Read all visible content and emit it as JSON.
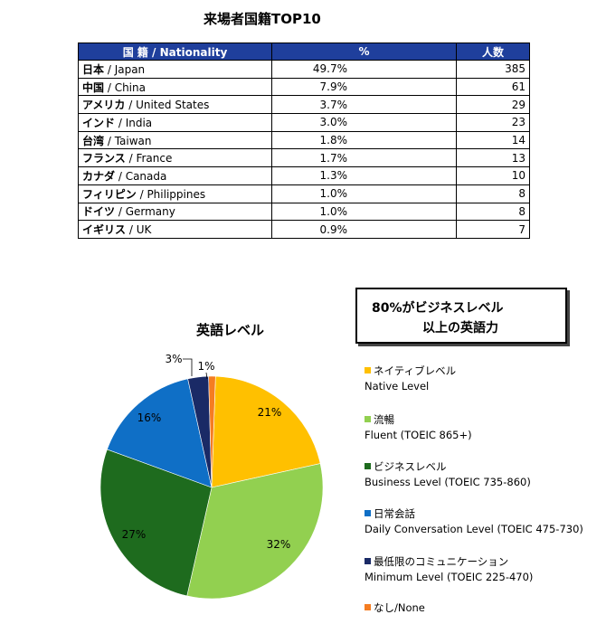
{
  "table": {
    "title": "来場者国籍TOP10",
    "headers": [
      "国 籍 / Nationality",
      "%",
      "人数"
    ],
    "rows": [
      {
        "jp": "日本",
        "en": " / Japan",
        "pct": "49.7%",
        "count": "385"
      },
      {
        "jp": "中国",
        "en": " / China",
        "pct": "7.9%",
        "count": "61"
      },
      {
        "jp": "アメリカ",
        "en": " / United States",
        "pct": "3.7%",
        "count": "29"
      },
      {
        "jp": "インド",
        "en": " / India",
        "pct": "3.0%",
        "count": "23"
      },
      {
        "jp": "台湾",
        "en": " / Taiwan",
        "pct": "1.8%",
        "count": "14"
      },
      {
        "jp": "フランス",
        "en": " / France",
        "pct": "1.7%",
        "count": "13"
      },
      {
        "jp": "カナダ",
        "en": " / Canada",
        "pct": "1.3%",
        "count": "10"
      },
      {
        "jp": "フィリピン",
        "en": " / Philippines",
        "pct": "1.0%",
        "count": "8"
      },
      {
        "jp": "ドイツ",
        "en": " / Germany",
        "pct": "1.0%",
        "count": "8"
      },
      {
        "jp": "イギリス",
        "en": " / UK",
        "pct": "0.9%",
        "count": "7"
      }
    ]
  },
  "callout": {
    "line1": "80%がビジネスレベル",
    "line2": "以上の英語力"
  },
  "chart_data": {
    "type": "pie",
    "title": "英語レベル",
    "labels": [
      "ネイティブレベル Native Level",
      "流暢 Fluent (TOEIC 865+)",
      "ビジネスレベル Business Level (TOEIC 735-860)",
      "日常会話 Daily Conversation Level (TOEIC 475-730)",
      "最低限のコミュニケーション Minimum Level (TOEIC 225-470)",
      "なし/None"
    ],
    "values": [
      21,
      32,
      27,
      16,
      3,
      1
    ],
    "value_labels": [
      "21%",
      "32%",
      "27%",
      "16%",
      "3%",
      "1%"
    ],
    "colors": [
      "#ffc000",
      "#92d050",
      "#1e6b1e",
      "#0f6fc6",
      "#1a2a66",
      "#f57d22"
    ],
    "legend_position": "right"
  },
  "legend": [
    {
      "jp": "ネイティブレベル",
      "en": "Native Level"
    },
    {
      "jp": "流暢",
      "en": "Fluent (TOEIC 865+)"
    },
    {
      "jp": "ビジネスレベル",
      "en": "Business Level (TOEIC 735-860)"
    },
    {
      "jp": "日常会話",
      "en": "Daily Conversation Level (TOEIC 475-730)"
    },
    {
      "jp": "最低限のコミュニケーション",
      "en": "Minimum Level (TOEIC 225-470)"
    },
    {
      "jp": "なし/None",
      "en": ""
    }
  ]
}
